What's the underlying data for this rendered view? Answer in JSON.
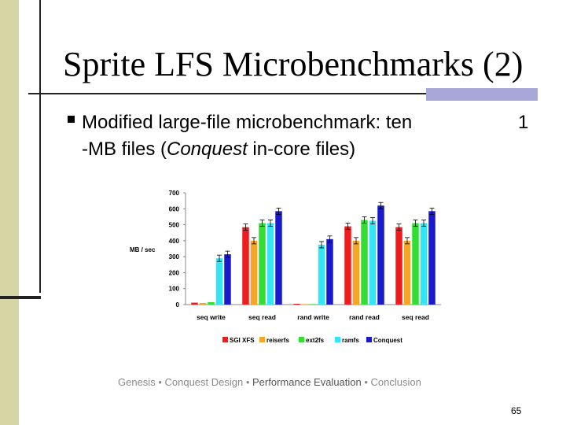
{
  "slide": {
    "title": "Sprite LFS Microbenchmarks (2)",
    "bullet_part1": "Modified large-file microbenchmark:  ten",
    "bullet_num": "1",
    "bullet_part2": "-MB files (",
    "bullet_italic": "Conquest",
    "bullet_part3": " in-core files)",
    "footer": {
      "item1": "Genesis",
      "sep": " • ",
      "item2": "Conquest Design",
      "item3": "Performance Evaluation",
      "item4": "Conclusion"
    },
    "page_number": "65"
  },
  "chart_data": {
    "type": "bar",
    "ylabel": "MB / sec",
    "ylim": [
      0,
      700
    ],
    "yticks": [
      "0",
      "100",
      "200",
      "300",
      "400",
      "500",
      "600",
      "700"
    ],
    "categories": [
      "seq write",
      "seq read",
      "rand write",
      "rand read",
      "seq read"
    ],
    "series": [
      {
        "name": "SGI XFS",
        "color": "#ee1c1c",
        "values": [
          12,
          485,
          5,
          490,
          485
        ]
      },
      {
        "name": "reiserfs",
        "color": "#f5a623",
        "values": [
          10,
          400,
          3,
          400,
          400
        ]
      },
      {
        "name": "ext2fs",
        "color": "#33dd33",
        "values": [
          15,
          510,
          3,
          530,
          510
        ]
      },
      {
        "name": "ramfs",
        "color": "#33e5f5",
        "values": [
          290,
          510,
          375,
          525,
          510
        ]
      },
      {
        "name": "Conquest",
        "color": "#1a1acc",
        "values": [
          315,
          585,
          410,
          620,
          585
        ]
      }
    ]
  }
}
